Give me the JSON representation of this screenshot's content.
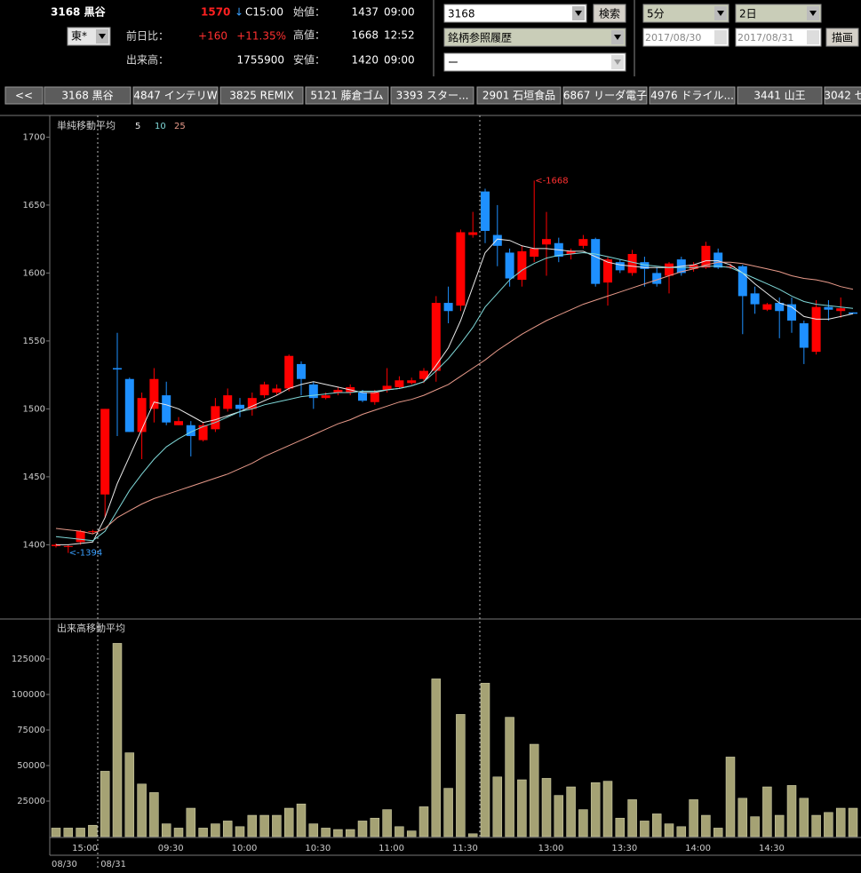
{
  "header": {
    "symbol": "3168 黒谷",
    "price": "1570",
    "direction": "↓",
    "time": "C15:00",
    "market": "東*",
    "change_label": "前日比：",
    "change": "+160",
    "change_pct": "+11.35%",
    "volume_label": "出来高：",
    "volume": "1755900",
    "open_label": "始値：",
    "open": "1437",
    "open_time": "09:00",
    "high_label": "高値：",
    "high": "1668",
    "high_time": "12:52",
    "low_label": "安値：",
    "low": "1420",
    "low_time": "09:00"
  },
  "controls": {
    "code": "3168",
    "search": "検索",
    "history": "銘柄参照履歴",
    "sub": "ー",
    "interval": "5分",
    "period": "2日",
    "date_from": "2017/08/30",
    "date_to": "2017/08/31",
    "draw": "描画"
  },
  "tabs": [
    "<<",
    "3168 黒谷",
    "4847 インテリW",
    "3825 REMIX",
    "5121 藤倉ゴム",
    "3393 スター...",
    "2901 石垣食品",
    "6867 リーダ電子",
    "4976 ドライル...",
    "3441 山王",
    "3042 セ"
  ],
  "chart_data": [
    {
      "type": "candlestick",
      "title": "単純移動平均",
      "up_color": "#ff0000",
      "down_color": "#1e90ff",
      "open": [
        1399,
        1399,
        1402,
        1410,
        1437,
        1530,
        1522,
        1483,
        1500,
        1510,
        1488,
        1488,
        1477,
        1485,
        1500,
        1503,
        1500,
        1510,
        1512,
        1515,
        1533,
        1518,
        1508,
        1512,
        1512,
        1512,
        1505,
        1514,
        1516,
        1519,
        1522,
        1528,
        1578,
        1576,
        1628,
        1660,
        1628,
        1615,
        1595,
        1612,
        1621,
        1622,
        1614,
        1620,
        1625,
        1593,
        1608,
        1600,
        1608,
        1600,
        1598,
        1610,
        1603,
        1604,
        1615,
        1605,
        1605,
        1585,
        1573,
        1578,
        1577,
        1563,
        1542,
        1575,
        1572,
        1571
      ],
      "high": [
        1401,
        1400,
        1411,
        1411,
        1500,
        1556,
        1523,
        1512,
        1530,
        1520,
        1494,
        1491,
        1490,
        1508,
        1515,
        1508,
        1512,
        1520,
        1518,
        1540,
        1535,
        1520,
        1512,
        1516,
        1518,
        1514,
        1514,
        1530,
        1524,
        1523,
        1530,
        1583,
        1590,
        1632,
        1645,
        1662,
        1650,
        1618,
        1620,
        1668,
        1645,
        1626,
        1618,
        1628,
        1626,
        1612,
        1610,
        1617,
        1612,
        1604,
        1608,
        1612,
        1608,
        1623,
        1618,
        1607,
        1606,
        1590,
        1578,
        1582,
        1582,
        1565,
        1580,
        1580,
        1582,
        1571
      ],
      "low": [
        1398,
        1394,
        1400,
        1408,
        1420,
        1480,
        1483,
        1463,
        1490,
        1488,
        1488,
        1465,
        1476,
        1483,
        1498,
        1494,
        1495,
        1508,
        1510,
        1513,
        1510,
        1500,
        1507,
        1510,
        1510,
        1505,
        1503,
        1512,
        1515,
        1518,
        1519,
        1520,
        1563,
        1572,
        1626,
        1622,
        1605,
        1590,
        1590,
        1608,
        1598,
        1608,
        1610,
        1618,
        1590,
        1576,
        1600,
        1598,
        1590,
        1590,
        1585,
        1598,
        1601,
        1603,
        1603,
        1603,
        1555,
        1570,
        1572,
        1552,
        1556,
        1533,
        1540,
        1565,
        1567,
        1570
      ],
      "close": [
        1400,
        1399,
        1410,
        1410,
        1500,
        1529,
        1483,
        1508,
        1522,
        1490,
        1491,
        1480,
        1488,
        1502,
        1510,
        1500,
        1508,
        1518,
        1515,
        1539,
        1522,
        1508,
        1510,
        1514,
        1516,
        1506,
        1512,
        1517,
        1521,
        1521,
        1528,
        1578,
        1572,
        1630,
        1630,
        1631,
        1620,
        1596,
        1616,
        1618,
        1625,
        1612,
        1616,
        1625,
        1592,
        1610,
        1602,
        1614,
        1603,
        1592,
        1607,
        1600,
        1606,
        1620,
        1604,
        1605,
        1583,
        1577,
        1577,
        1572,
        1565,
        1545,
        1575,
        1573,
        1574,
        1570
      ],
      "series": [
        {
          "name": "5",
          "color": "#e8e8e8",
          "values": [
            1400,
            1400,
            1401,
            1402,
            1420,
            1445,
            1465,
            1485,
            1505,
            1503,
            1500,
            1495,
            1490,
            1492,
            1495,
            1498,
            1502,
            1506,
            1510,
            1515,
            1518,
            1520,
            1518,
            1516,
            1514,
            1512,
            1512,
            1514,
            1515,
            1517,
            1520,
            1532,
            1545,
            1565,
            1590,
            1615,
            1625,
            1624,
            1620,
            1618,
            1618,
            1617,
            1616,
            1616,
            1612,
            1608,
            1606,
            1605,
            1604,
            1604,
            1604,
            1605,
            1606,
            1609,
            1609,
            1606,
            1600,
            1592,
            1585,
            1578,
            1575,
            1568,
            1566,
            1566,
            1568,
            1570
          ]
        },
        {
          "name": "10",
          "color": "#7fd8d8",
          "values": [
            1406,
            1405,
            1404,
            1403,
            1410,
            1425,
            1440,
            1452,
            1463,
            1472,
            1478,
            1483,
            1487,
            1490,
            1494,
            1498,
            1500,
            1503,
            1505,
            1507,
            1509,
            1510,
            1511,
            1512,
            1512,
            1513,
            1513,
            1514,
            1515,
            1517,
            1520,
            1528,
            1537,
            1548,
            1560,
            1575,
            1585,
            1595,
            1602,
            1607,
            1611,
            1613,
            1614,
            1615,
            1614,
            1612,
            1610,
            1608,
            1606,
            1605,
            1604,
            1604,
            1604,
            1605,
            1605,
            1604,
            1600,
            1596,
            1592,
            1588,
            1583,
            1579,
            1577,
            1576,
            1575,
            1574
          ]
        },
        {
          "name": "25",
          "color": "#e89a8a",
          "values": [
            1412,
            1411,
            1410,
            1408,
            1412,
            1420,
            1425,
            1430,
            1434,
            1437,
            1440,
            1443,
            1446,
            1449,
            1452,
            1456,
            1460,
            1465,
            1469,
            1473,
            1477,
            1481,
            1485,
            1489,
            1492,
            1496,
            1499,
            1502,
            1505,
            1507,
            1510,
            1514,
            1518,
            1524,
            1530,
            1536,
            1543,
            1549,
            1555,
            1560,
            1565,
            1569,
            1573,
            1577,
            1580,
            1583,
            1586,
            1589,
            1592,
            1595,
            1598,
            1601,
            1603,
            1606,
            1608,
            1608,
            1607,
            1605,
            1603,
            1601,
            1598,
            1596,
            1595,
            1593,
            1590,
            1588
          ]
        }
      ],
      "annotations": [
        "<-1668",
        "<-1394"
      ],
      "ylim": [
        1346,
        1714
      ],
      "yticks": [
        1400,
        1450,
        1500,
        1550,
        1600,
        1650,
        1700
      ]
    },
    {
      "type": "bar",
      "title": "出来高移動平均",
      "color": "#a5a274",
      "categories": [
        null,
        null,
        "15:00",
        null,
        null,
        null,
        null,
        null,
        null,
        "09:30",
        null,
        null,
        null,
        null,
        null,
        "10:00",
        null,
        null,
        null,
        null,
        null,
        "10:30",
        null,
        null,
        null,
        null,
        null,
        "11:00",
        null,
        null,
        null,
        null,
        null,
        "11:30",
        null,
        null,
        null,
        null,
        null,
        null,
        "13:00",
        null,
        null,
        null,
        null,
        null,
        "13:30",
        null,
        null,
        null,
        null,
        null,
        "14:00",
        null,
        null,
        null,
        null,
        null,
        "14:30",
        null,
        null,
        null,
        null,
        null,
        null,
        null
      ],
      "dates": [
        "08/30",
        null,
        null,
        null,
        "08/31",
        null,
        null,
        null,
        null,
        null,
        null,
        null,
        null,
        null,
        null,
        null,
        null,
        null,
        null,
        null,
        null,
        null,
        null,
        null,
        null,
        null,
        null,
        null,
        null,
        null,
        null,
        null,
        null,
        null,
        null,
        null,
        null,
        null,
        null,
        null,
        null,
        null,
        null,
        null,
        null,
        null,
        null,
        null,
        null,
        null,
        null,
        null,
        null,
        null,
        null,
        null,
        null,
        null,
        null,
        null,
        null,
        null,
        null,
        null,
        null,
        null
      ],
      "values": [
        6000,
        6000,
        6000,
        8000,
        46000,
        136000,
        59000,
        37000,
        31000,
        9000,
        6000,
        20000,
        6000,
        9000,
        11000,
        7000,
        15000,
        15000,
        15000,
        20000,
        23000,
        9000,
        6000,
        5000,
        5000,
        11000,
        13000,
        19000,
        7000,
        4000,
        21000,
        111000,
        34000,
        86000,
        2000,
        108000,
        42000,
        84000,
        40000,
        65000,
        41000,
        29000,
        35000,
        19000,
        38000,
        39000,
        13000,
        26000,
        11000,
        16000,
        9000,
        7000,
        26000,
        15000,
        6000,
        56000,
        27000,
        14000,
        35000,
        15000,
        36000,
        27000,
        15000,
        17000,
        20000,
        20000
      ],
      "ylim": [
        0,
        152500
      ],
      "yticks": [
        25000,
        50000,
        75000,
        100000,
        125000
      ]
    }
  ]
}
